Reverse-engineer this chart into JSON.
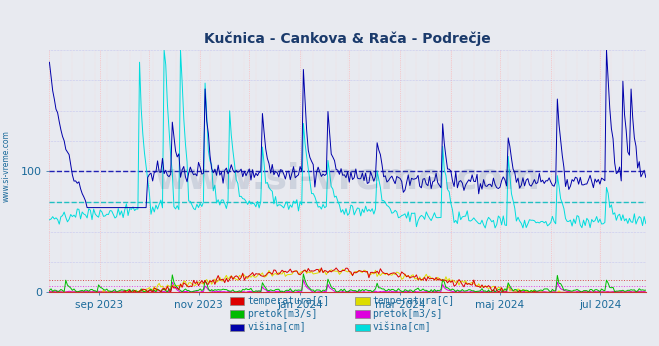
{
  "title": "Kučnica - Cankova & Rača - Podrečje",
  "title_color": "#1a3a6b",
  "bg_color": "#e8eaf0",
  "plot_bg_color": "#e8eaf0",
  "ylim": [
    0,
    200
  ],
  "yticks": [
    0,
    100
  ],
  "xticklabels": [
    "sep 2023",
    "nov 2023",
    "jan 2024",
    "mar 2024",
    "maj 2024",
    "jul 2024"
  ],
  "xtick_positions": [
    30,
    91,
    153,
    214,
    275,
    336
  ],
  "watermark": "www.si-vreme.com",
  "watermark_color": "#1a3a6b",
  "watermark_alpha": 0.13,
  "watermark_fontsize": 26,
  "legend1": [
    {
      "label": "temperatura[C]",
      "color": "#dd0000"
    },
    {
      "label": "pretok[m3/s]",
      "color": "#00bb00"
    },
    {
      "label": "višina[cm]",
      "color": "#0000aa"
    }
  ],
  "legend2": [
    {
      "label": "temperatura[C]",
      "color": "#dddd00"
    },
    {
      "label": "pretok[m3/s]",
      "color": "#dd00dd"
    },
    {
      "label": "višina[cm]",
      "color": "#00dddd"
    }
  ],
  "hline_dark_blue_y": 100,
  "hline_cyan_y": 75,
  "hline_dark_blue_color": "#0000aa",
  "hline_cyan_color": "#00bbbb",
  "hline_red_dotted_y": 10,
  "hline_pink_dotted_y": 5,
  "tick_label_color": "#1a6a9a",
  "sidebar_text": "www.si-vreme.com",
  "sidebar_color": "#1a6a9a"
}
